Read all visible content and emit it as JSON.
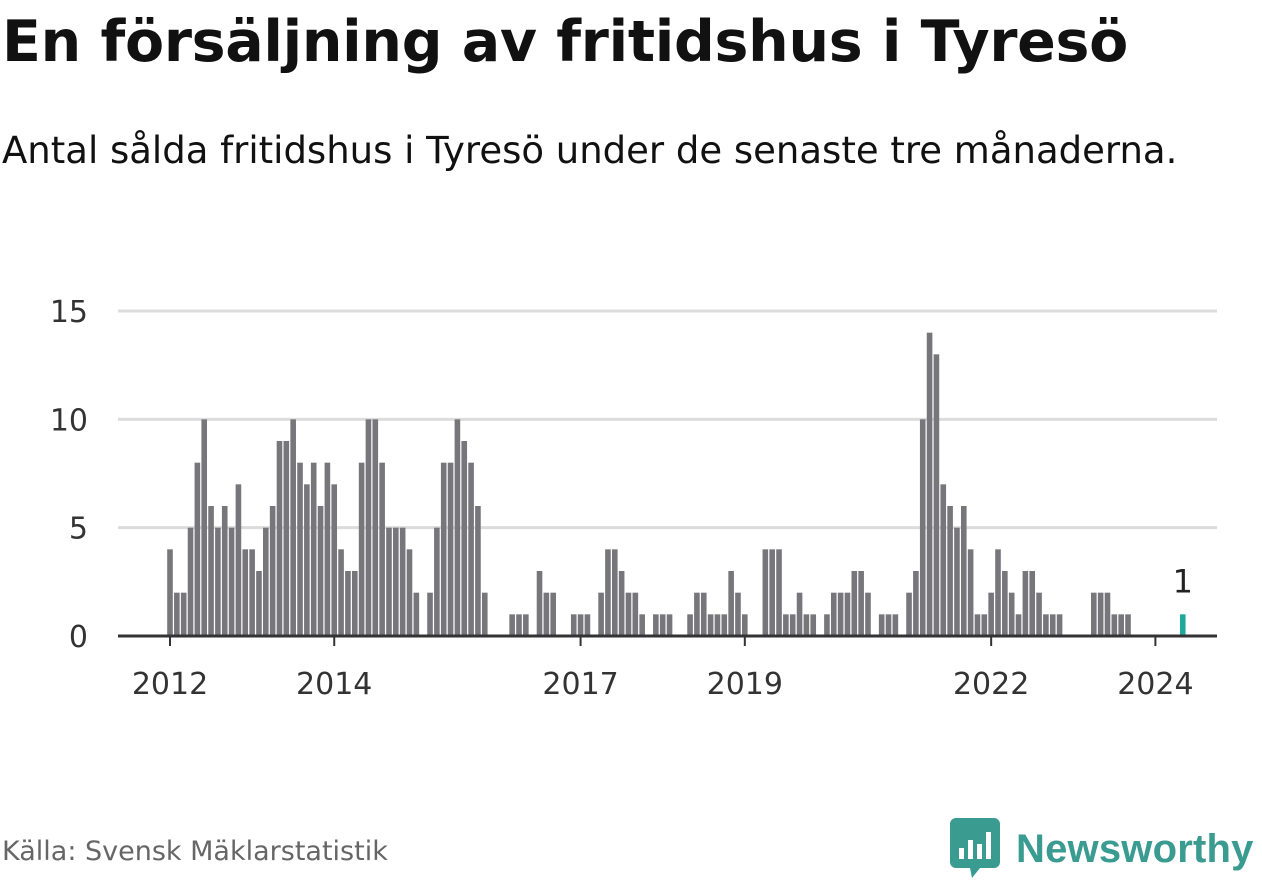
{
  "title": "En försäljning av fritidshus i Tyresö",
  "subtitle": "Antal sålda fritidshus i Tyresö under de senaste tre månaderna.",
  "source": "Källa: Svensk Mäklarstatistik",
  "brand": "Newsworthy",
  "colors": {
    "bar": "#77767b",
    "highlight": "#1fa89c",
    "grid": "#dcdcdc",
    "axis": "#333333",
    "brand": "#3a9b91"
  },
  "chart_data": {
    "type": "bar",
    "title": "En försäljning av fritidshus i Tyresö",
    "xlabel": "",
    "ylabel": "",
    "ylim": [
      0,
      15
    ],
    "grid": true,
    "y_ticks": [
      "0",
      "5",
      "10",
      "15"
    ],
    "x_ticks": [
      {
        "label": "2012",
        "index": 0
      },
      {
        "label": "2014",
        "index": 24
      },
      {
        "label": "2017",
        "index": 60
      },
      {
        "label": "2019",
        "index": 84
      },
      {
        "label": "2022",
        "index": 120
      },
      {
        "label": "2024",
        "index": 144
      }
    ],
    "start_period": "2012-01",
    "frequency": "monthly",
    "values": [
      4,
      2,
      2,
      5,
      8,
      10,
      6,
      5,
      6,
      5,
      7,
      4,
      4,
      3,
      5,
      6,
      9,
      9,
      10,
      8,
      7,
      8,
      6,
      8,
      7,
      4,
      3,
      3,
      8,
      10,
      10,
      8,
      5,
      5,
      5,
      4,
      2,
      0,
      2,
      5,
      8,
      8,
      10,
      9,
      8,
      6,
      2,
      0,
      0,
      0,
      1,
      1,
      1,
      0,
      3,
      2,
      2,
      0,
      0,
      1,
      1,
      1,
      0,
      2,
      4,
      4,
      3,
      2,
      2,
      1,
      0,
      1,
      1,
      1,
      0,
      0,
      1,
      2,
      2,
      1,
      1,
      1,
      3,
      2,
      1,
      0,
      0,
      4,
      4,
      4,
      1,
      1,
      2,
      1,
      1,
      0,
      1,
      2,
      2,
      2,
      3,
      3,
      2,
      0,
      1,
      1,
      1,
      0,
      2,
      3,
      10,
      14,
      13,
      7,
      6,
      5,
      6,
      4,
      1,
      1,
      2,
      4,
      3,
      2,
      1,
      3,
      3,
      2,
      1,
      1,
      1,
      0,
      0,
      0,
      0,
      2,
      2,
      2,
      1,
      1,
      1,
      0,
      0,
      0,
      0,
      0,
      0,
      0,
      1
    ],
    "highlight_index": 148,
    "annotation": {
      "index": 148,
      "text": "1"
    }
  }
}
